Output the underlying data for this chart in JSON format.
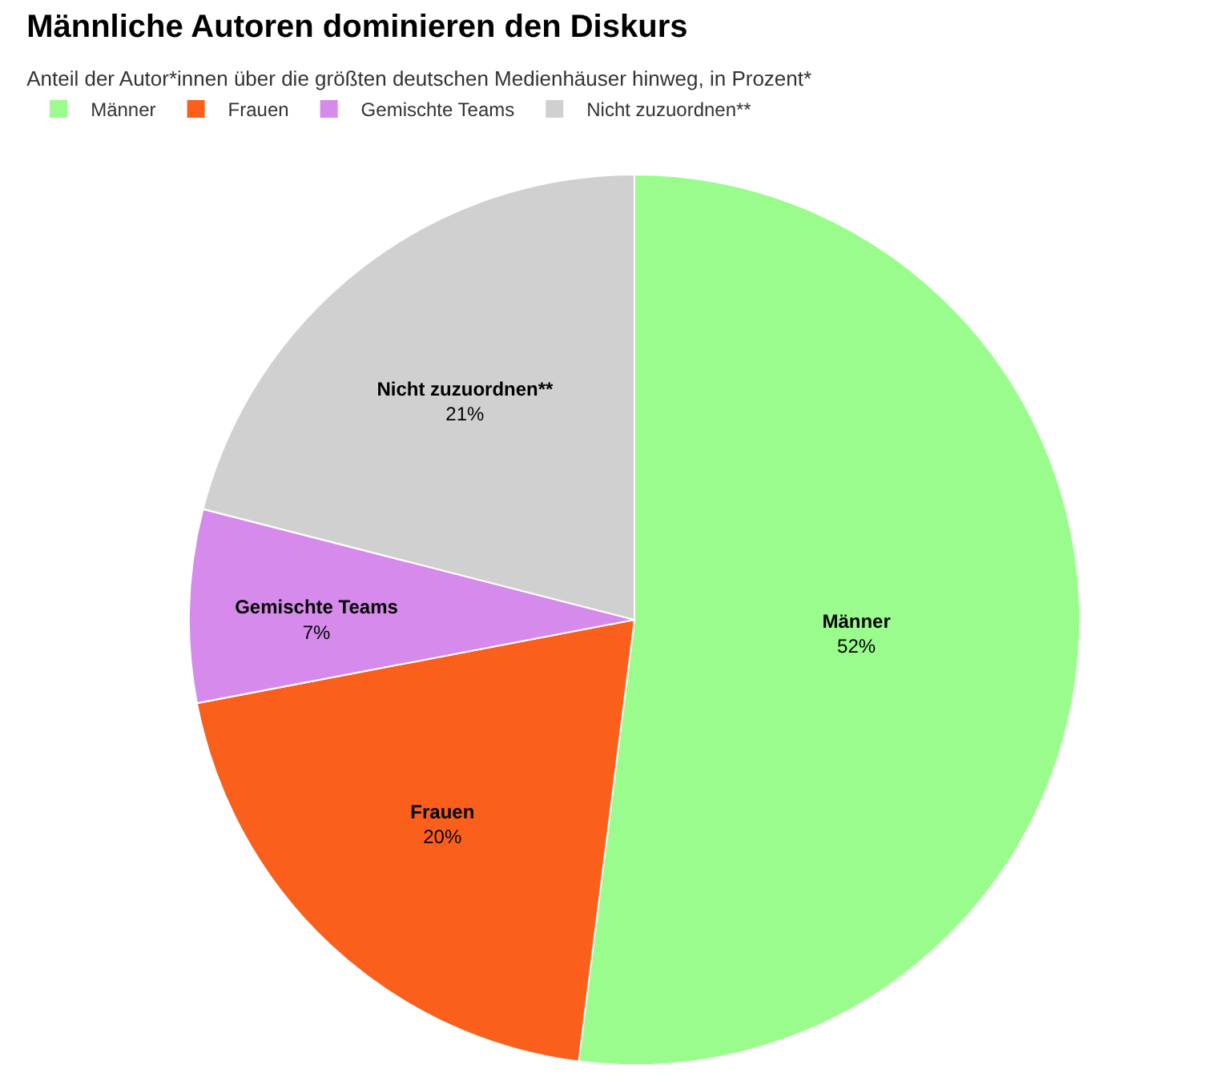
{
  "chart_data": {
    "type": "pie",
    "title": "Männliche Autoren dominieren den Diskurs",
    "subtitle": "Anteil der Autor*innen über die größten deutschen Medienhäuser hinweg, in Prozent*",
    "categories": [
      "Männer",
      "Frauen",
      "Gemischte Teams",
      "Nicht zuzuordnen**"
    ],
    "values": [
      52,
      20,
      7,
      21
    ],
    "value_labels": [
      "52%",
      "20%",
      "7%",
      "21%"
    ],
    "colors": [
      "#9afc8c",
      "#fa5f1b",
      "#d68aec",
      "#d0d0d0"
    ],
    "legend": "top left"
  }
}
